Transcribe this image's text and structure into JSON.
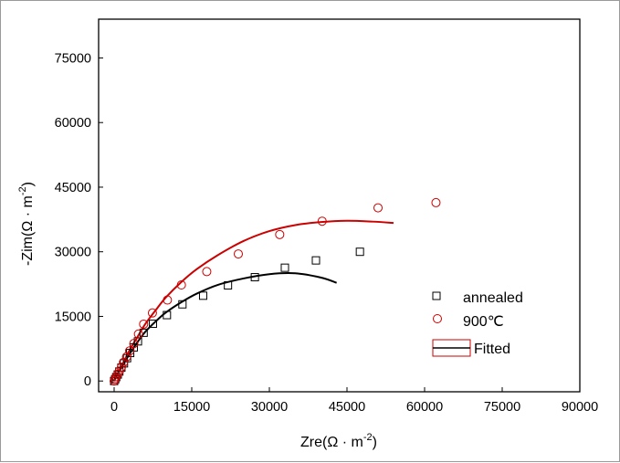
{
  "chart_data": {
    "type": "scatter",
    "title": "",
    "xlabel": {
      "base": "Zre(",
      "unit": "Ω · m",
      "exp": "-2",
      "close": ")"
    },
    "ylabel": {
      "base": "-Zim(",
      "unit": "Ω · m",
      "exp": "-2",
      "close": ")"
    },
    "xlim": [
      -3000,
      90000
    ],
    "ylim": [
      -2500,
      84000
    ],
    "xticks": [
      0,
      15000,
      30000,
      45000,
      60000,
      75000,
      90000
    ],
    "yticks": [
      0,
      15000,
      30000,
      45000,
      60000,
      75000
    ],
    "xtick_labels": [
      "0",
      "15000",
      "30000",
      "45000",
      "60000",
      "75000",
      "90000"
    ],
    "ytick_labels": [
      "0",
      "15000",
      "30000",
      "45000",
      "60000",
      "75000"
    ],
    "grid": false,
    "legend_position": "center-right",
    "series": [
      {
        "name": "annealed",
        "marker": "square",
        "color": "#000000",
        "points": [
          [
            0,
            0
          ],
          [
            200,
            400
          ],
          [
            400,
            900
          ],
          [
            700,
            1500
          ],
          [
            1000,
            2200
          ],
          [
            1400,
            3100
          ],
          [
            1900,
            4100
          ],
          [
            2500,
            5300
          ],
          [
            3100,
            6500
          ],
          [
            3800,
            7800
          ],
          [
            4600,
            9200
          ],
          [
            5700,
            11200
          ],
          [
            7500,
            13300
          ],
          [
            10200,
            15300
          ],
          [
            13200,
            17800
          ],
          [
            17200,
            19800
          ],
          [
            22000,
            22200
          ],
          [
            27200,
            24100
          ],
          [
            33000,
            26300
          ],
          [
            39000,
            28000
          ],
          [
            47500,
            30000
          ]
        ]
      },
      {
        "name": "900℃",
        "marker": "circle",
        "color": "#cc0000",
        "points": [
          [
            0,
            0
          ],
          [
            200,
            500
          ],
          [
            400,
            1000
          ],
          [
            700,
            1600
          ],
          [
            1000,
            2300
          ],
          [
            1400,
            3200
          ],
          [
            1800,
            4300
          ],
          [
            2400,
            5600
          ],
          [
            3000,
            7000
          ],
          [
            3800,
            8700
          ],
          [
            4700,
            10900
          ],
          [
            5700,
            13200
          ],
          [
            7400,
            15800
          ],
          [
            10300,
            18800
          ],
          [
            13000,
            22300
          ],
          [
            17900,
            25400
          ],
          [
            24000,
            29500
          ],
          [
            32000,
            34000
          ],
          [
            40200,
            37100
          ],
          [
            51000,
            40200
          ],
          [
            62200,
            41400
          ]
        ]
      }
    ],
    "fitted": {
      "name": "Fitted",
      "curves": [
        {
          "for": "annealed",
          "color": "#000000",
          "points": [
            [
              0,
              0
            ],
            [
              500,
              1200
            ],
            [
              1000,
              2300
            ],
            [
              2000,
              4300
            ],
            [
              3000,
              6300
            ],
            [
              4500,
              9000
            ],
            [
              6000,
              11400
            ],
            [
              8000,
              13800
            ],
            [
              10000,
              15900
            ],
            [
              13000,
              18300
            ],
            [
              16000,
              20300
            ],
            [
              20000,
              22300
            ],
            [
              25000,
              23800
            ],
            [
              30000,
              24800
            ],
            [
              35000,
              25000
            ],
            [
              40000,
              24000
            ],
            [
              43000,
              22800
            ]
          ]
        },
        {
          "for": "900℃",
          "color": "#cc0000",
          "points": [
            [
              0,
              0
            ],
            [
              500,
              1300
            ],
            [
              1000,
              2500
            ],
            [
              2000,
              4800
            ],
            [
              3000,
              7200
            ],
            [
              4500,
              10200
            ],
            [
              6000,
              13200
            ],
            [
              8000,
              16400
            ],
            [
              10000,
              19400
            ],
            [
              13000,
              23000
            ],
            [
              16000,
              26000
            ],
            [
              20000,
              29200
            ],
            [
              25000,
              32500
            ],
            [
              30000,
              34800
            ],
            [
              35000,
              36200
            ],
            [
              40000,
              36900
            ],
            [
              45000,
              37200
            ],
            [
              50000,
              37000
            ],
            [
              54000,
              36700
            ]
          ]
        }
      ]
    }
  }
}
